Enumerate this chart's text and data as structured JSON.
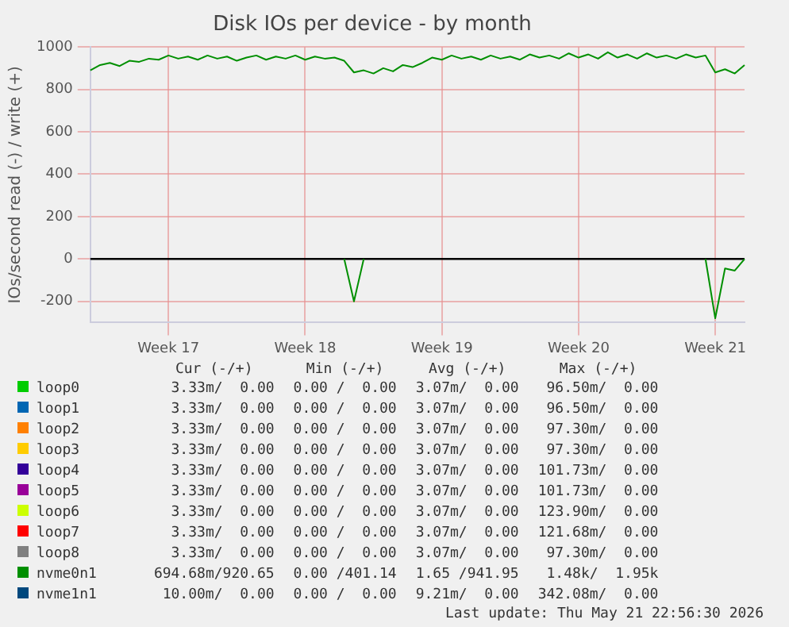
{
  "chart_data": {
    "type": "line",
    "title": "Disk IOs per device - by month",
    "ylabel": "IOs/second read (-) / write (+)",
    "categories": [
      null,
      null,
      null,
      null,
      null,
      null,
      null,
      null,
      "Week 17",
      null,
      null,
      null,
      null,
      null,
      null,
      null,
      null,
      null,
      null,
      null,
      null,
      null,
      "Week 18",
      null,
      null,
      null,
      null,
      null,
      null,
      null,
      null,
      null,
      null,
      null,
      null,
      null,
      "Week 19",
      null,
      null,
      null,
      null,
      null,
      null,
      null,
      null,
      null,
      null,
      null,
      null,
      null,
      "Week 20",
      null,
      null,
      null,
      null,
      null,
      null,
      null,
      null,
      null,
      null,
      null,
      null,
      null,
      "Week 21",
      null,
      null,
      null
    ],
    "ylim": [
      -300,
      1000
    ],
    "yticks": [
      -200,
      0,
      200,
      400,
      600,
      800,
      1000
    ],
    "grid": true,
    "legend": "bottom",
    "marker": "none",
    "ref_lines": [
      {
        "axis": "y",
        "value": 0,
        "color": "#000000"
      }
    ],
    "series": [
      {
        "name": "loop0",
        "color": "#00cc00",
        "values": [
          null,
          null,
          null,
          null,
          null,
          null,
          null,
          null,
          null,
          null,
          null,
          null,
          null,
          null,
          null,
          null,
          null,
          null,
          null,
          null,
          null,
          null,
          null,
          null,
          null,
          null,
          null,
          null,
          null,
          null,
          null,
          null,
          null,
          null,
          null,
          null,
          null,
          null,
          null,
          null,
          null,
          null,
          null,
          null,
          null,
          null,
          null,
          null,
          null,
          null,
          null,
          null,
          null,
          null,
          null,
          null,
          null,
          null,
          null,
          null,
          null,
          null,
          null,
          null,
          null,
          null,
          null,
          null
        ]
      },
      {
        "name": "loop1",
        "color": "#0066b3",
        "values": [
          null,
          null,
          null,
          null,
          null,
          null,
          null,
          null,
          null,
          null,
          null,
          null,
          null,
          null,
          null,
          null,
          null,
          null,
          null,
          null,
          null,
          null,
          null,
          null,
          null,
          null,
          null,
          null,
          null,
          null,
          null,
          null,
          null,
          null,
          null,
          null,
          null,
          null,
          null,
          null,
          null,
          null,
          null,
          null,
          null,
          null,
          null,
          null,
          null,
          null,
          null,
          null,
          null,
          null,
          null,
          null,
          null,
          null,
          null,
          null,
          null,
          null,
          null,
          null,
          null,
          null,
          null,
          null
        ]
      },
      {
        "name": "loop2",
        "color": "#ff8000",
        "values": [
          null,
          null,
          null,
          null,
          null,
          null,
          null,
          null,
          null,
          null,
          null,
          null,
          null,
          null,
          null,
          null,
          null,
          null,
          null,
          null,
          null,
          null,
          null,
          null,
          null,
          null,
          null,
          null,
          null,
          null,
          null,
          null,
          null,
          null,
          null,
          null,
          null,
          null,
          null,
          null,
          null,
          null,
          null,
          null,
          null,
          null,
          null,
          null,
          null,
          null,
          null,
          null,
          null,
          null,
          null,
          null,
          null,
          null,
          null,
          null,
          null,
          null,
          null,
          null,
          null,
          null,
          null,
          null
        ]
      },
      {
        "name": "loop3",
        "color": "#ffcc00",
        "values": [
          null,
          null,
          null,
          null,
          null,
          null,
          null,
          null,
          null,
          null,
          null,
          null,
          null,
          null,
          null,
          null,
          null,
          null,
          null,
          null,
          null,
          null,
          null,
          null,
          null,
          null,
          null,
          null,
          null,
          null,
          null,
          null,
          null,
          null,
          null,
          null,
          null,
          null,
          null,
          null,
          null,
          null,
          null,
          null,
          null,
          null,
          null,
          null,
          null,
          null,
          null,
          null,
          null,
          null,
          null,
          null,
          null,
          null,
          null,
          null,
          null,
          null,
          null,
          null,
          null,
          null,
          null,
          null
        ]
      },
      {
        "name": "loop4",
        "color": "#330099",
        "values": [
          null,
          null,
          null,
          null,
          null,
          null,
          null,
          null,
          null,
          null,
          null,
          null,
          null,
          null,
          null,
          null,
          null,
          null,
          null,
          null,
          null,
          null,
          null,
          null,
          null,
          null,
          null,
          null,
          null,
          null,
          null,
          null,
          null,
          null,
          null,
          null,
          null,
          null,
          null,
          null,
          null,
          null,
          null,
          null,
          null,
          null,
          null,
          null,
          null,
          null,
          null,
          null,
          null,
          null,
          null,
          null,
          null,
          null,
          null,
          null,
          null,
          null,
          null,
          null,
          null,
          null,
          null,
          null
        ]
      },
      {
        "name": "loop5",
        "color": "#990099",
        "values": [
          null,
          null,
          null,
          null,
          null,
          null,
          null,
          null,
          null,
          null,
          null,
          null,
          null,
          null,
          null,
          null,
          null,
          null,
          null,
          null,
          null,
          null,
          null,
          null,
          null,
          null,
          null,
          null,
          null,
          null,
          null,
          null,
          null,
          null,
          null,
          null,
          null,
          null,
          null,
          null,
          null,
          null,
          null,
          null,
          null,
          null,
          null,
          null,
          null,
          null,
          null,
          null,
          null,
          null,
          null,
          null,
          null,
          null,
          null,
          null,
          null,
          null,
          null,
          null,
          null,
          null,
          null,
          null
        ]
      },
      {
        "name": "loop6",
        "color": "#ccff00",
        "values": [
          null,
          null,
          null,
          null,
          null,
          null,
          null,
          null,
          null,
          null,
          null,
          null,
          null,
          null,
          null,
          null,
          null,
          null,
          null,
          null,
          null,
          null,
          null,
          null,
          null,
          null,
          null,
          null,
          null,
          null,
          null,
          null,
          null,
          null,
          null,
          null,
          null,
          null,
          null,
          null,
          null,
          null,
          null,
          null,
          null,
          null,
          null,
          null,
          null,
          null,
          null,
          null,
          null,
          null,
          null,
          null,
          null,
          null,
          null,
          null,
          null,
          null,
          null,
          null,
          null,
          null,
          null,
          null
        ]
      },
      {
        "name": "loop7",
        "color": "#ff0000",
        "values": [
          null,
          null,
          null,
          null,
          null,
          null,
          null,
          null,
          null,
          null,
          null,
          null,
          null,
          null,
          null,
          null,
          null,
          null,
          null,
          null,
          null,
          null,
          null,
          null,
          null,
          null,
          null,
          null,
          null,
          null,
          null,
          null,
          null,
          null,
          null,
          null,
          null,
          null,
          null,
          null,
          null,
          null,
          null,
          null,
          null,
          null,
          null,
          null,
          null,
          null,
          null,
          null,
          null,
          null,
          null,
          null,
          null,
          null,
          null,
          null,
          null,
          null,
          null,
          null,
          null,
          null,
          null,
          null
        ]
      },
      {
        "name": "loop8",
        "color": "#808080",
        "values": [
          null,
          null,
          null,
          null,
          null,
          null,
          null,
          null,
          null,
          null,
          null,
          null,
          null,
          null,
          null,
          null,
          null,
          null,
          null,
          null,
          null,
          null,
          null,
          null,
          null,
          null,
          null,
          null,
          null,
          null,
          null,
          null,
          null,
          null,
          null,
          null,
          null,
          null,
          null,
          null,
          null,
          null,
          null,
          null,
          null,
          null,
          null,
          null,
          null,
          null,
          null,
          null,
          null,
          null,
          null,
          null,
          null,
          null,
          null,
          null,
          null,
          null,
          null,
          null,
          null,
          null,
          null,
          null
        ]
      },
      {
        "name": "nvme0n1",
        "color": "#008f00",
        "values": [
          890,
          915,
          925,
          910,
          935,
          930,
          945,
          940,
          960,
          945,
          955,
          940,
          960,
          945,
          955,
          935,
          950,
          960,
          940,
          955,
          945,
          960,
          940,
          955,
          945,
          950,
          935,
          880,
          890,
          875,
          900,
          885,
          915,
          905,
          925,
          950,
          940,
          960,
          945,
          955,
          940,
          960,
          945,
          955,
          940,
          965,
          950,
          960,
          945,
          970,
          950,
          965,
          945,
          975,
          950,
          965,
          945,
          970,
          950,
          960,
          945,
          965,
          950,
          960,
          880,
          895,
          875,
          915
        ]
      },
      {
        "name": "nvme1n1",
        "color": "#00487d",
        "values": [
          null,
          null,
          null,
          null,
          null,
          null,
          null,
          null,
          null,
          null,
          null,
          null,
          null,
          null,
          null,
          null,
          null,
          null,
          null,
          null,
          null,
          null,
          null,
          null,
          null,
          null,
          null,
          null,
          null,
          null,
          null,
          null,
          null,
          null,
          null,
          null,
          null,
          null,
          null,
          null,
          null,
          null,
          null,
          null,
          null,
          null,
          null,
          null,
          null,
          null,
          null,
          null,
          null,
          null,
          null,
          null,
          null,
          null,
          null,
          null,
          null,
          null,
          null,
          null,
          null,
          null,
          null,
          null
        ]
      },
      {
        "color": "#008f00",
        "values": [
          null,
          null,
          null,
          null,
          null,
          null,
          null,
          null,
          null,
          null,
          null,
          null,
          null,
          null,
          null,
          null,
          null,
          null,
          null,
          null,
          null,
          null,
          null,
          null,
          null,
          null,
          0,
          -200,
          0,
          null,
          null,
          null,
          null,
          null,
          null,
          null,
          null,
          null,
          null,
          null,
          null,
          null,
          null,
          null,
          null,
          null,
          null,
          null,
          null,
          null,
          null,
          null,
          null,
          null,
          null,
          null,
          null,
          null,
          null,
          null,
          null,
          null,
          null,
          0,
          -280,
          -45,
          -55,
          0
        ]
      }
    ],
    "annotations": [
      "Cur (-/+)",
      "Min (-/+)",
      "Avg (-/+)",
      "Max (-/+)",
      "3.33m/  0.00",
      "0.00 /  0.00",
      "3.07m/  0.00",
      "96.50m/  0.00",
      "3.33m/  0.00",
      "0.00 /  0.00",
      "3.07m/  0.00",
      "96.50m/  0.00",
      "3.33m/  0.00",
      "0.00 /  0.00",
      "3.07m/  0.00",
      "97.30m/  0.00",
      "3.33m/  0.00",
      "0.00 /  0.00",
      "3.07m/  0.00",
      "97.30m/  0.00",
      "3.33m/  0.00",
      "0.00 /  0.00",
      "3.07m/  0.00",
      "101.73m/  0.00",
      "3.33m/  0.00",
      "0.00 /  0.00",
      "3.07m/  0.00",
      "101.73m/  0.00",
      "3.33m/  0.00",
      "0.00 /  0.00",
      "3.07m/  0.00",
      "123.90m/  0.00",
      "3.33m/  0.00",
      "0.00 /  0.00",
      "3.07m/  0.00",
      "121.68m/  0.00",
      "3.33m/  0.00",
      "0.00 /  0.00",
      "3.07m/  0.00",
      "97.30m/  0.00",
      "694.68m/920.65",
      "0.00 /401.14",
      "1.65 /941.95",
      "1.48k/  1.95k",
      "10.00m/  0.00",
      "0.00 /  0.00",
      "9.21m/  0.00",
      "342.08m/  0.00",
      "Last update: Thu May 21 22:56:30 2026"
    ]
  }
}
